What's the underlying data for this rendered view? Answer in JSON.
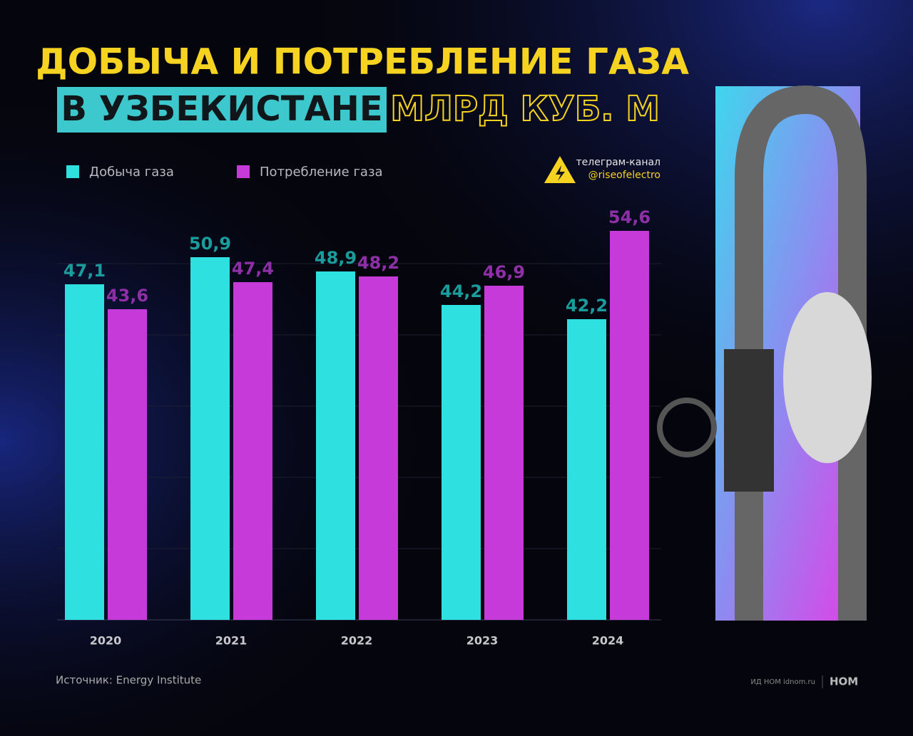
{
  "chart_data": {
    "type": "bar",
    "title": "ДОБЫЧА И ПОТРЕБЛЕНИЕ ГАЗА",
    "title_line2": "В УЗБЕКИСТАНЕ",
    "unit": "МЛРД КУБ. М",
    "categories": [
      "2020",
      "2021",
      "2022",
      "2023",
      "2024"
    ],
    "series": [
      {
        "name": "Добыча газа",
        "color": "#2ee0e0",
        "label_color": "#1a9c9c",
        "values": [
          47.1,
          50.9,
          48.9,
          44.2,
          42.2
        ],
        "value_labels": [
          "47,1",
          "50,9",
          "48,9",
          "44,2",
          "42,2"
        ]
      },
      {
        "name": "Потребление газа",
        "color": "#c53ad8",
        "label_color": "#8e2fa8",
        "values": [
          43.6,
          47.4,
          48.2,
          46.9,
          54.6
        ],
        "value_labels": [
          "43,6",
          "47,4",
          "48,2",
          "46,9",
          "54,6"
        ]
      }
    ],
    "ylim": [
      0,
      55
    ],
    "yticks": [
      0,
      10,
      20,
      30,
      40,
      50
    ],
    "grid": true,
    "channel_label": "телеграм-канал",
    "channel_handle": "@riseofelectro",
    "source": "Источник: Energy Institute",
    "publisher": "ИД НОМ idnom.ru",
    "logo": "НОМ"
  }
}
